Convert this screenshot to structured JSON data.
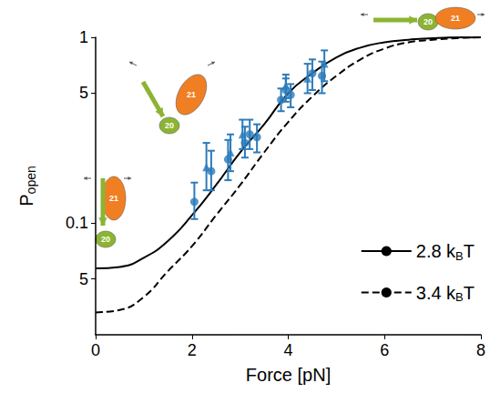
{
  "chart_data": {
    "type": "line",
    "x_label": "Force [pN]",
    "y_label": "Popen",
    "log": "y",
    "grid": false,
    "legend": "lower right",
    "xlim": [
      0,
      8
    ],
    "ylim": [
      0.025,
      1
    ],
    "xticks": [
      0,
      2,
      4,
      6,
      8
    ],
    "yticks": [
      {
        "value": 0.05,
        "label": "5"
      },
      0.1,
      {
        "value": 0.5,
        "label": "5"
      },
      1
    ],
    "series": [
      {
        "name": "2.8 kBT",
        "type": "line",
        "color": "#000000",
        "line_style": "solid",
        "x": [
          0,
          0.5,
          1,
          1.5,
          2,
          2.5,
          3,
          3.5,
          4,
          4.5,
          5,
          5.5,
          6,
          6.5,
          7,
          8
        ],
        "values": [
          0.057,
          0.058,
          0.065,
          0.08,
          0.11,
          0.16,
          0.24,
          0.34,
          0.5,
          0.64,
          0.78,
          0.88,
          0.94,
          0.97,
          0.99,
          1.0
        ]
      },
      {
        "name": "3.4 kBT",
        "type": "line",
        "color": "#000000",
        "line_style": "dashed",
        "x": [
          0,
          0.5,
          1,
          1.5,
          2,
          2.5,
          3,
          3.5,
          4,
          4.5,
          5,
          5.5,
          6,
          6.5,
          7,
          7.5,
          8
        ],
        "values": [
          0.033,
          0.034,
          0.04,
          0.055,
          0.075,
          0.11,
          0.16,
          0.24,
          0.35,
          0.48,
          0.62,
          0.76,
          0.87,
          0.94,
          0.97,
          0.99,
          1.0
        ]
      },
      {
        "type": "scatter",
        "marker": "circle",
        "color": "#2b7bba",
        "x": [
          2.05,
          2.4,
          2.75,
          3.1,
          3.2,
          3.35,
          3.85,
          3.95,
          4.05,
          4.5,
          4.7
        ],
        "values": [
          0.13,
          0.19,
          0.22,
          0.27,
          0.3,
          0.29,
          0.46,
          0.52,
          0.49,
          0.64,
          0.62
        ],
        "error_low": [
          0.105,
          0.15,
          0.17,
          0.225,
          0.25,
          0.24,
          0.4,
          0.45,
          0.42,
          0.52,
          0.5
        ],
        "error_high": [
          0.165,
          0.245,
          0.28,
          0.33,
          0.36,
          0.34,
          0.53,
          0.6,
          0.56,
          0.76,
          0.74
        ]
      },
      {
        "type": "scatter",
        "marker": "triangle",
        "color": "#2b7bba",
        "x": [
          2.3,
          2.8,
          3.05,
          3.95,
          4.4,
          4.75
        ],
        "values": [
          0.2,
          0.24,
          0.3,
          0.55,
          0.6,
          0.72
        ],
        "error_low": [
          0.15,
          0.19,
          0.25,
          0.47,
          0.5,
          0.58
        ],
        "error_high": [
          0.27,
          0.3,
          0.36,
          0.63,
          0.72,
          0.85
        ]
      }
    ],
    "annotations": [
      {
        "text": "21",
        "color": "#f07f23"
      },
      {
        "text": "20",
        "color": "#8cb432"
      },
      {
        "text": "21",
        "color": "#f07f23"
      },
      {
        "text": "20",
        "color": "#8cb432"
      },
      {
        "text": "20",
        "color": "#8cb432"
      },
      {
        "text": "21",
        "color": "#f07f23"
      }
    ]
  }
}
